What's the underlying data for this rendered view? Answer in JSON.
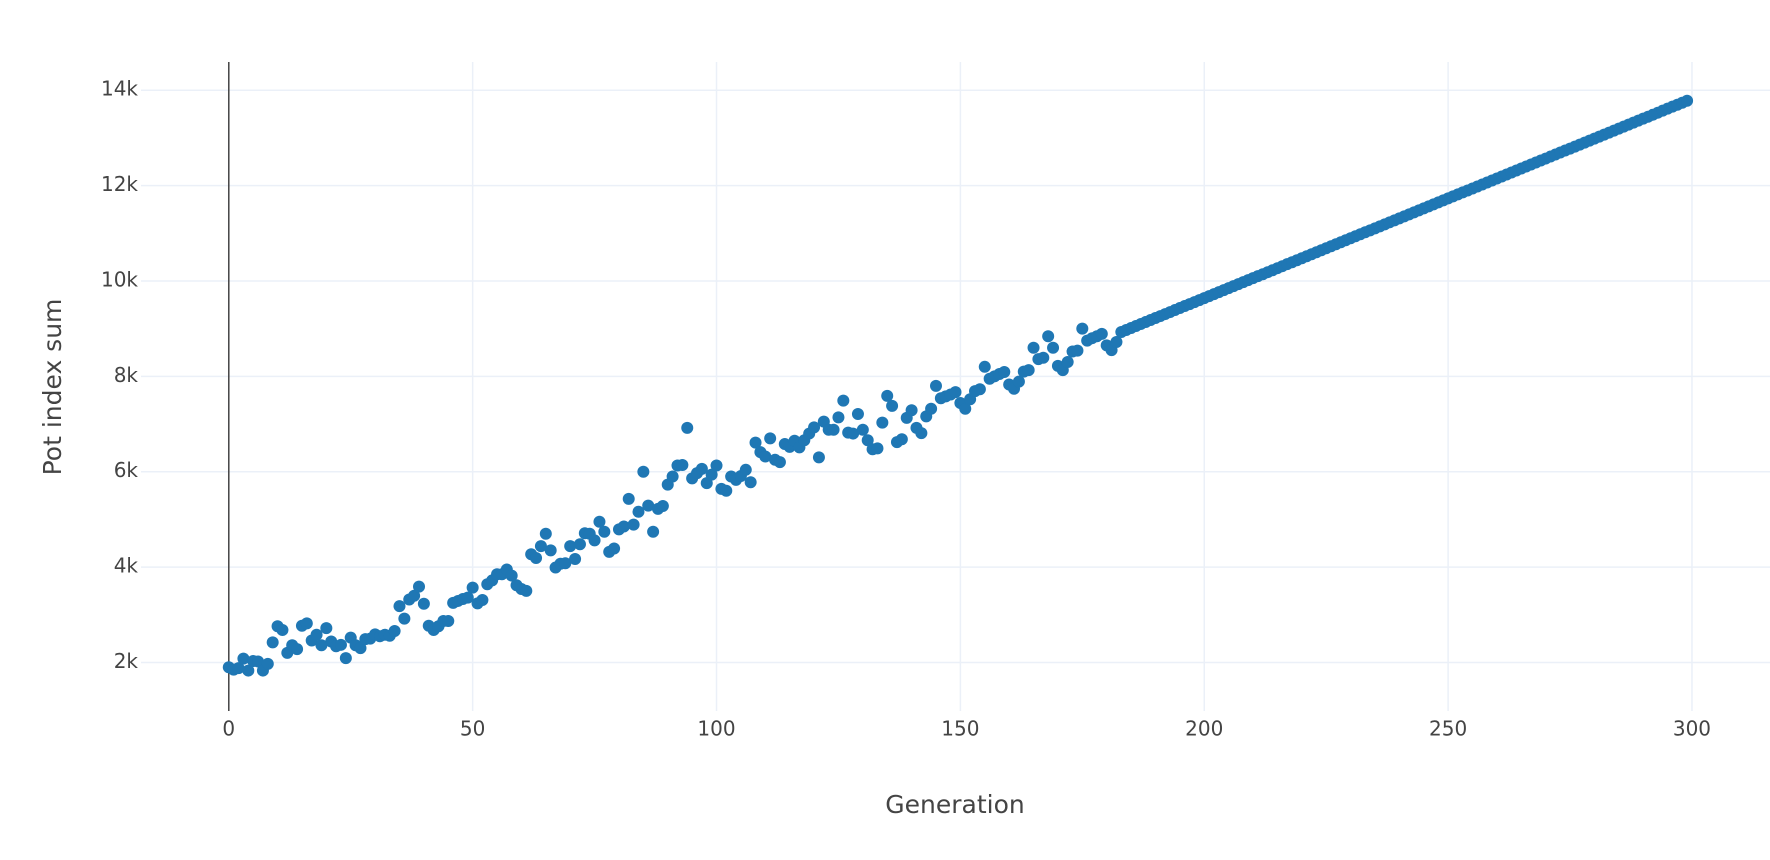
{
  "chart_data": {
    "type": "scatter",
    "x_label": "Generation",
    "y_label": "Pot index sum",
    "xlim": [
      -18,
      316
    ],
    "ylim": [
      982,
      14592
    ],
    "xticks": [
      0,
      50,
      100,
      150,
      200,
      250,
      300
    ],
    "yticks": [
      {
        "value": 2000,
        "label": "2k"
      },
      {
        "value": 4000,
        "label": "4k"
      },
      {
        "value": 6000,
        "label": "6k"
      },
      {
        "value": 8000,
        "label": "8k"
      },
      {
        "value": 10000,
        "label": "10k"
      },
      {
        "value": 12000,
        "label": "12k"
      },
      {
        "value": 14000,
        "label": "14k"
      }
    ],
    "grid": true,
    "zeroline": true,
    "color": "#1f77b4",
    "x": [
      0,
      1,
      2,
      3,
      4,
      5,
      6,
      7,
      8,
      9,
      10,
      11,
      12,
      13,
      14,
      15,
      16,
      17,
      18,
      19,
      20,
      21,
      22,
      23,
      24,
      25,
      26,
      27,
      28,
      29,
      30,
      31,
      32,
      33,
      34,
      35,
      36,
      37,
      38,
      39,
      40,
      41,
      42,
      43,
      44,
      45,
      46,
      47,
      48,
      49,
      50,
      51,
      52,
      53,
      54,
      55,
      56,
      57,
      58,
      59,
      60,
      61,
      62,
      63,
      64,
      65,
      66,
      67,
      68,
      69,
      70,
      71,
      72,
      73,
      74,
      75,
      76,
      77,
      78,
      79,
      80,
      81,
      82,
      83,
      84,
      85,
      86,
      87,
      88,
      89,
      90,
      91,
      92,
      93,
      94,
      95,
      96,
      97,
      98,
      99,
      100,
      101,
      102,
      103,
      104,
      105,
      106,
      107,
      108,
      109,
      110,
      111,
      112,
      113,
      114,
      115,
      116,
      117,
      118,
      119,
      120,
      121,
      122,
      123,
      124,
      125,
      126,
      127,
      128,
      129,
      130,
      131,
      132,
      133,
      134,
      135,
      136,
      137,
      138,
      139,
      140,
      141,
      142,
      143,
      144,
      145,
      146,
      147,
      148,
      149,
      150,
      151,
      152,
      153,
      154,
      155,
      156,
      157,
      158,
      159,
      160,
      161,
      162,
      163,
      164,
      165,
      166,
      167,
      168,
      169,
      170,
      171,
      172,
      173,
      174,
      175,
      176,
      177,
      178,
      179,
      180,
      181,
      182,
      183,
      184,
      185,
      186,
      187,
      188,
      189,
      190,
      191,
      192,
      193,
      194,
      195,
      196,
      197,
      198,
      199,
      200,
      201,
      202,
      203,
      204,
      205,
      206,
      207,
      208,
      209,
      210,
      211,
      212,
      213,
      214,
      215,
      216,
      217,
      218,
      219,
      220,
      221,
      222,
      223,
      224,
      225,
      226,
      227,
      228,
      229,
      230,
      231,
      232,
      233,
      234,
      235,
      236,
      237,
      238,
      239,
      240,
      241,
      242,
      243,
      244,
      245,
      246,
      247,
      248,
      249,
      250,
      251,
      252,
      253,
      254,
      255,
      256,
      257,
      258,
      259,
      260,
      261,
      262,
      263,
      264,
      265,
      266,
      267,
      268,
      269,
      270,
      271,
      272,
      273,
      274,
      275,
      276,
      277,
      278,
      279,
      280,
      281,
      282,
      283,
      284,
      285,
      286,
      287,
      288,
      289,
      290,
      291,
      292,
      293,
      294,
      295,
      296,
      297,
      298,
      299
    ],
    "values": [
      1900,
      1850,
      1880,
      2080,
      1830,
      2030,
      2020,
      1830,
      1970,
      2420,
      2760,
      2680,
      2200,
      2360,
      2280,
      2770,
      2820,
      2460,
      2580,
      2360,
      2720,
      2440,
      2340,
      2370,
      2090,
      2520,
      2360,
      2300,
      2490,
      2500,
      2590,
      2550,
      2580,
      2560,
      2660,
      3180,
      2920,
      3320,
      3400,
      3590,
      3230,
      2770,
      2680,
      2760,
      2870,
      2870,
      3250,
      3290,
      3330,
      3360,
      3570,
      3240,
      3310,
      3640,
      3720,
      3850,
      3850,
      3950,
      3820,
      3620,
      3540,
      3500,
      4270,
      4190,
      4440,
      4700,
      4350,
      3990,
      4070,
      4080,
      4440,
      4170,
      4480,
      4710,
      4700,
      4560,
      4950,
      4740,
      4320,
      4390,
      4790,
      4850,
      5430,
      4890,
      5160,
      6000,
      5290,
      4740,
      5220,
      5280,
      5730,
      5900,
      6130,
      6140,
      6920,
      5860,
      5970,
      6060,
      5760,
      5940,
      6130,
      5640,
      5600,
      5900,
      5830,
      5910,
      6040,
      5780,
      6610,
      6410,
      6320,
      6700,
      6250,
      6200,
      6580,
      6520,
      6650,
      6510,
      6660,
      6800,
      6930,
      6300,
      7050,
      6880,
      6880,
      7140,
      7490,
      6820,
      6800,
      7210,
      6880,
      6660,
      6470,
      6490,
      7030,
      7590,
      7380,
      6620,
      6680,
      7130,
      7290,
      6920,
      6810,
      7160,
      7320,
      7800,
      7540,
      7580,
      7620,
      7670,
      7440,
      7320,
      7520,
      7690,
      7730,
      8200,
      7950,
      8000,
      8050,
      8090,
      7830,
      7740,
      7890,
      8100,
      8130,
      8600,
      8360,
      8390,
      8840,
      8600,
      8220,
      8130,
      8300,
      8520,
      8540,
      9000,
      8750,
      8800,
      8840,
      8890,
      8650,
      8550,
      8720,
      8930,
      8972,
      9014,
      9055,
      9097,
      9139,
      9181,
      9223,
      9264,
      9306,
      9348,
      9390,
      9432,
      9474,
      9515,
      9557,
      9599,
      9641,
      9683,
      9724,
      9766,
      9808,
      9850,
      9892,
      9933,
      9975,
      10017,
      10059,
      10101,
      10142,
      10184,
      10226,
      10268,
      10310,
      10352,
      10393,
      10435,
      10477,
      10519,
      10561,
      10602,
      10644,
      10686,
      10728,
      10770,
      10811,
      10853,
      10895,
      10937,
      10979,
      11021,
      11062,
      11104,
      11146,
      11188,
      11230,
      11271,
      11313,
      11355,
      11397,
      11439,
      11480,
      11522,
      11564,
      11606,
      11648,
      11690,
      11731,
      11773,
      11815,
      11857,
      11898,
      11940,
      11982,
      12024,
      12066,
      12107,
      12149,
      12191,
      12233,
      12275,
      12317,
      12358,
      12400,
      12442,
      12484,
      12526,
      12567,
      12609,
      12651,
      12693,
      12735,
      12776,
      12818,
      12860,
      12902,
      12944,
      12986,
      13027,
      13069,
      13111,
      13153,
      13195,
      13236,
      13278,
      13320,
      13362,
      13404,
      13445,
      13487,
      13529,
      13571,
      13613,
      13655,
      13696,
      13738,
      13780
    ]
  }
}
